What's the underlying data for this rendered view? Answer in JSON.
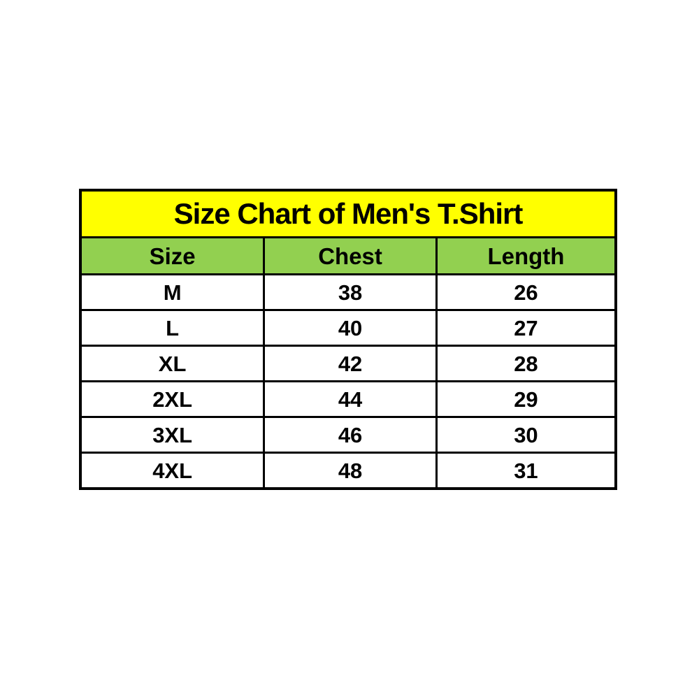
{
  "chart_data": {
    "type": "table",
    "title": "Size Chart of Men's T.Shirt",
    "columns": [
      "Size",
      "Chest",
      "Length"
    ],
    "rows": [
      [
        "M",
        38,
        26
      ],
      [
        "L",
        40,
        27
      ],
      [
        "XL",
        42,
        28
      ],
      [
        "2XL",
        44,
        29
      ],
      [
        "3XL",
        46,
        30
      ],
      [
        "4XL",
        48,
        31
      ]
    ],
    "layout_hints": {
      "header_fill": "green",
      "title_fill": "yellow",
      "grid": "all-borders",
      "text_align": "center"
    }
  },
  "colors": {
    "title_bg": "#FFFF00",
    "header_bg": "#92D050",
    "border": "#000000",
    "text": "#000000",
    "page_bg": "#FFFFFF",
    "row_bg": "#FFFFFF"
  }
}
